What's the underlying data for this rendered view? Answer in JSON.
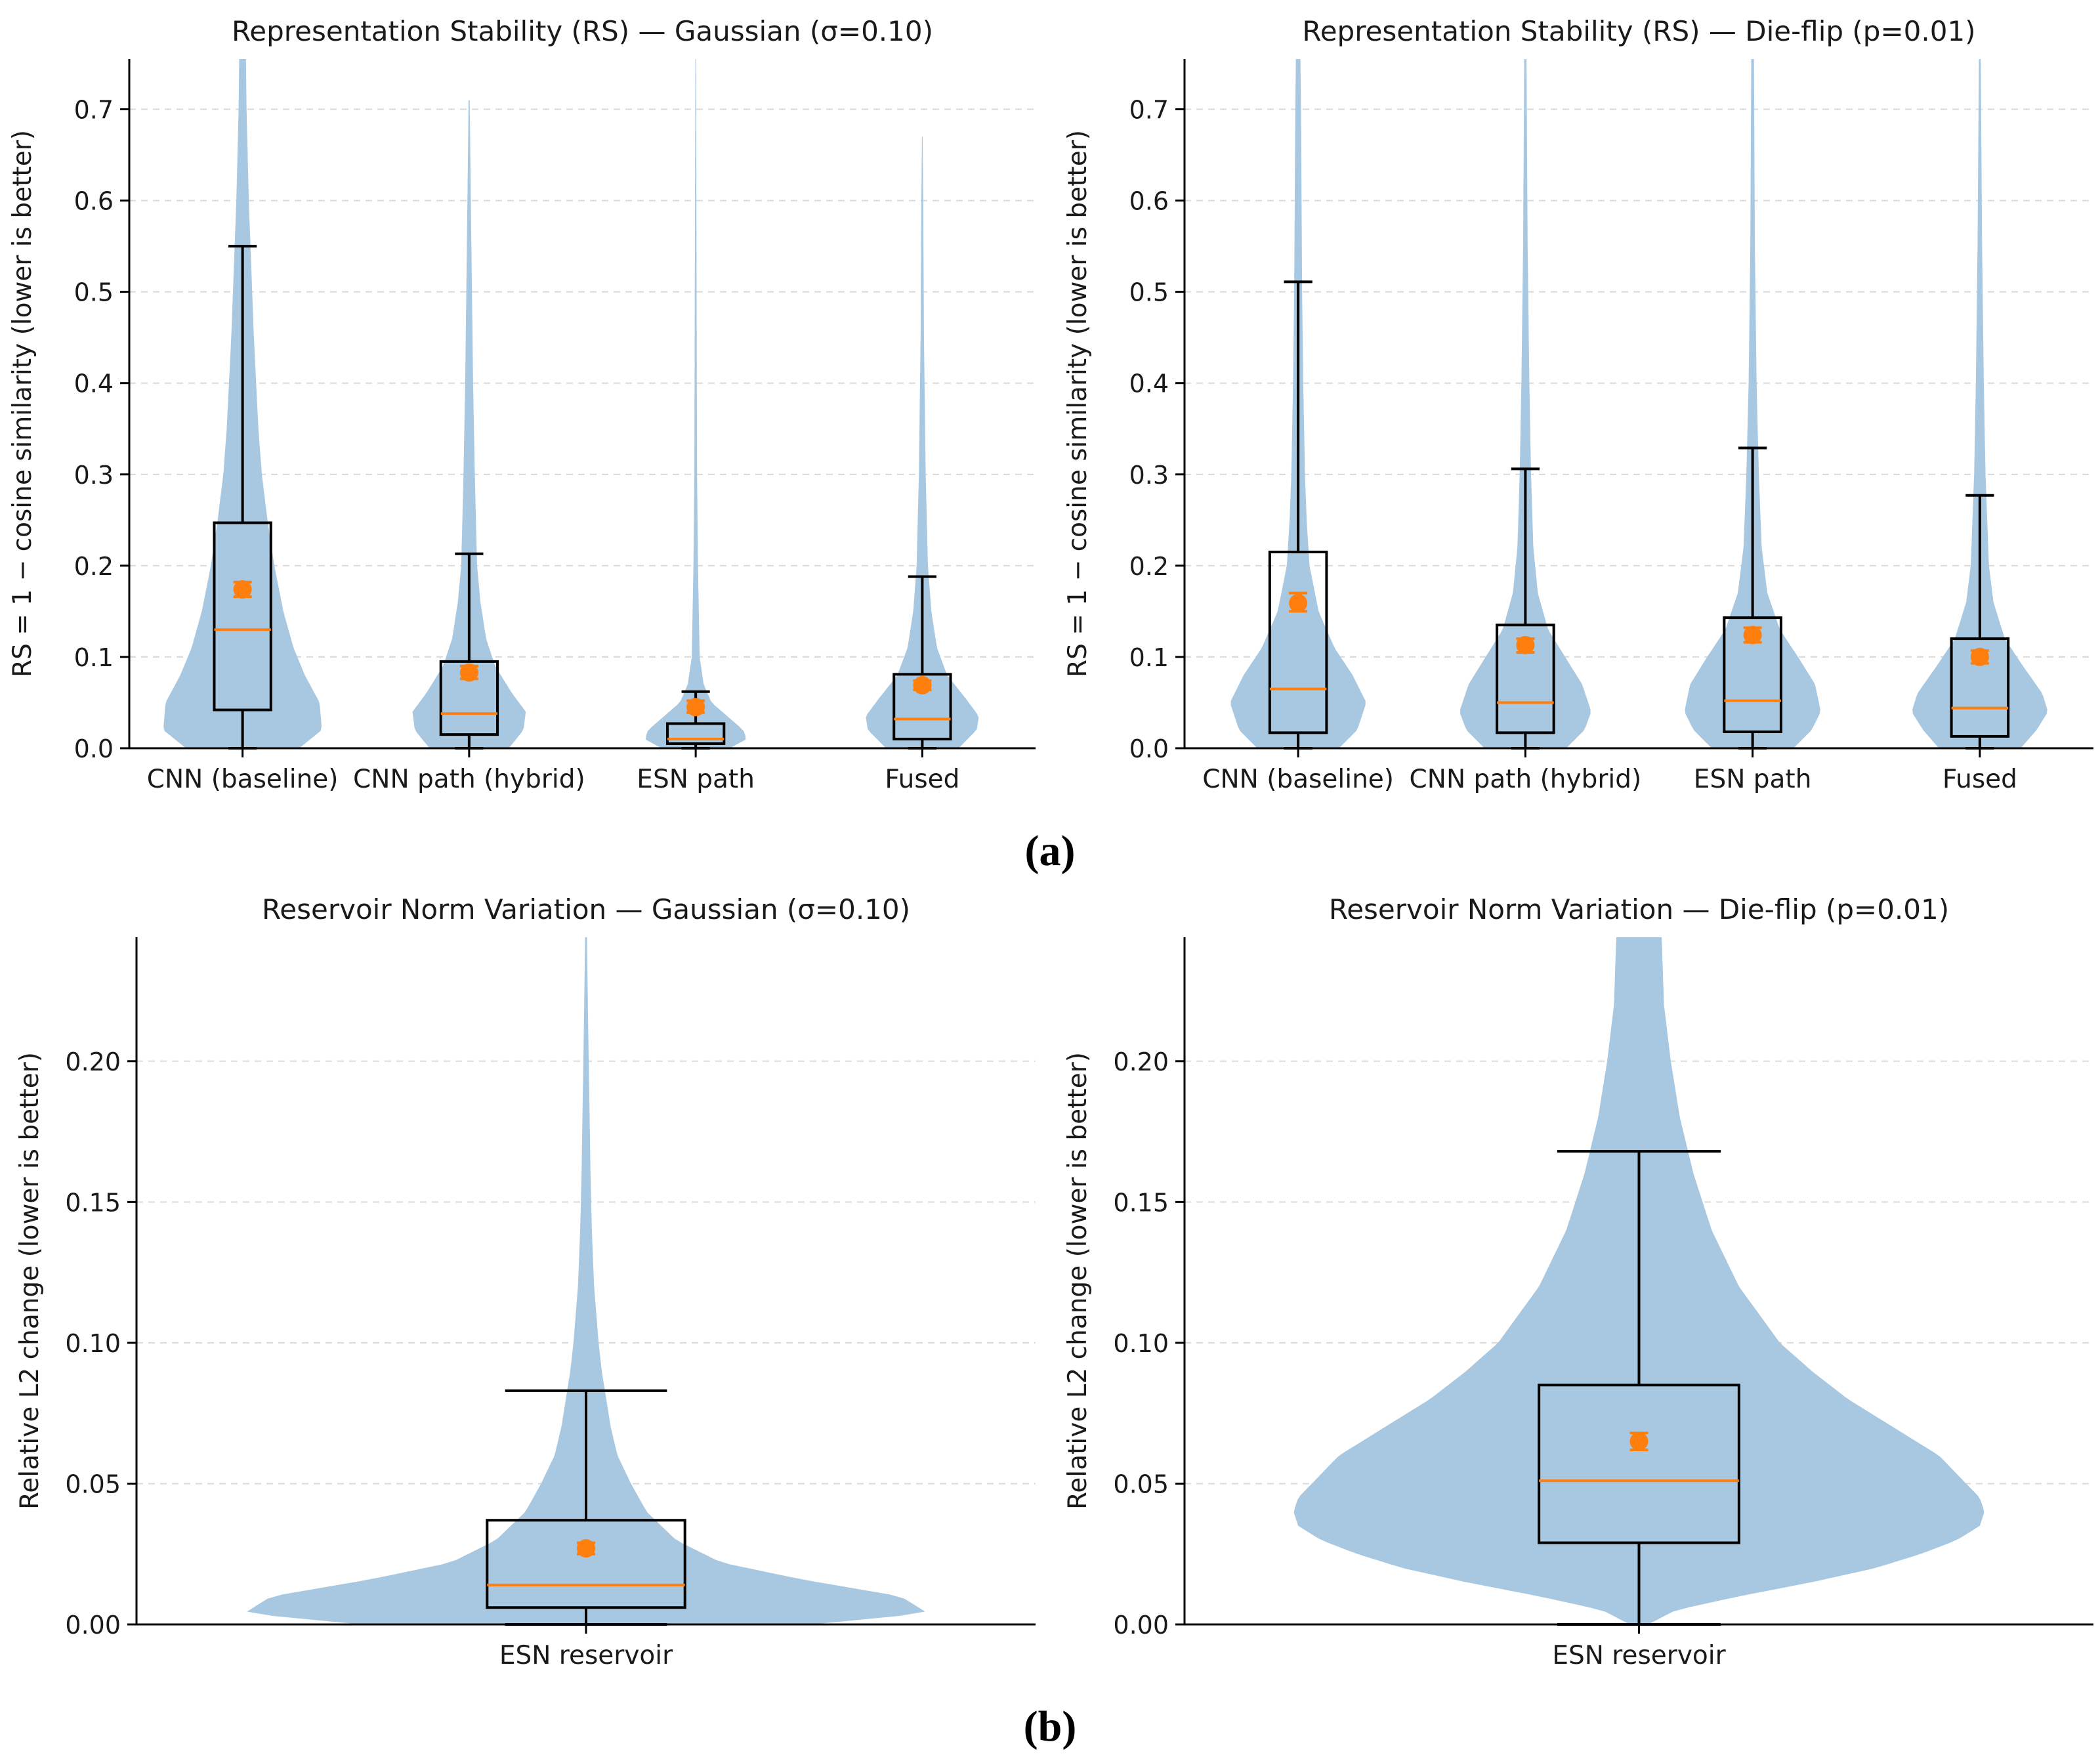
{
  "panel_labels": [
    "(a)",
    "(b)"
  ],
  "colors": {
    "violin": "#a8c8e1",
    "median": "#ff7f0e",
    "mean": "#ff7f0e",
    "box": "#000000",
    "grid": "#d9d9d9"
  },
  "chart_data": [
    {
      "type": "violin-box",
      "title": "Representation Stability (RS) — Gaussian (σ=0.10)",
      "ylabel": "RS = 1 − cosine similarity (lower is better)",
      "xlabel": "",
      "ylim": [
        0,
        0.755
      ],
      "yticks": [
        0.0,
        0.1,
        0.2,
        0.3,
        0.4,
        0.5,
        0.6,
        0.7
      ],
      "ytick_labels": [
        "0.0",
        "0.1",
        "0.2",
        "0.3",
        "0.4",
        "0.5",
        "0.6",
        "0.7"
      ],
      "grid": "y-dashed",
      "categories": [
        "CNN (baseline)",
        "CNN path (hybrid)",
        "ESN path",
        "Fused"
      ],
      "series": [
        {
          "name": "CNN (baseline)",
          "whisker_low": 0.0,
          "q1": 0.042,
          "median": 0.13,
          "q3": 0.247,
          "whisker_high": 0.55,
          "mean": 0.174,
          "mean_ci": [
            0.166,
            0.182
          ],
          "violin_max": 0.755,
          "violin_profile": [
            [
              0.0,
              0.5
            ],
            [
              0.02,
              0.7
            ],
            [
              0.05,
              0.68
            ],
            [
              0.08,
              0.55
            ],
            [
              0.11,
              0.45
            ],
            [
              0.15,
              0.36
            ],
            [
              0.2,
              0.28
            ],
            [
              0.25,
              0.22
            ],
            [
              0.3,
              0.17
            ],
            [
              0.35,
              0.14
            ],
            [
              0.4,
              0.12
            ],
            [
              0.45,
              0.1
            ],
            [
              0.5,
              0.085
            ],
            [
              0.55,
              0.07
            ],
            [
              0.6,
              0.055
            ],
            [
              0.65,
              0.045
            ],
            [
              0.7,
              0.035
            ],
            [
              0.755,
              0.03
            ]
          ]
        },
        {
          "name": "CNN path (hybrid)",
          "whisker_low": 0.0,
          "q1": 0.015,
          "median": 0.038,
          "q3": 0.095,
          "whisker_high": 0.213,
          "mean": 0.083,
          "mean_ci": [
            0.076,
            0.09
          ],
          "violin_max": 0.71,
          "violin_profile": [
            [
              0.0,
              0.35
            ],
            [
              0.02,
              0.48
            ],
            [
              0.04,
              0.5
            ],
            [
              0.06,
              0.38
            ],
            [
              0.09,
              0.23
            ],
            [
              0.12,
              0.15
            ],
            [
              0.16,
              0.1
            ],
            [
              0.2,
              0.07
            ],
            [
              0.3,
              0.05
            ],
            [
              0.4,
              0.035
            ],
            [
              0.5,
              0.025
            ],
            [
              0.6,
              0.015
            ],
            [
              0.71,
              0.005
            ]
          ]
        },
        {
          "name": "ESN path",
          "whisker_low": 0.0,
          "q1": 0.005,
          "median": 0.01,
          "q3": 0.027,
          "whisker_high": 0.062,
          "mean": 0.045,
          "mean_ci": [
            0.039,
            0.052
          ],
          "violin_max": 0.755,
          "violin_profile": [
            [
              0.0,
              0.3
            ],
            [
              0.01,
              0.45
            ],
            [
              0.02,
              0.42
            ],
            [
              0.035,
              0.28
            ],
            [
              0.05,
              0.14
            ],
            [
              0.07,
              0.07
            ],
            [
              0.1,
              0.035
            ],
            [
              0.2,
              0.02
            ],
            [
              0.3,
              0.012
            ],
            [
              0.5,
              0.008
            ],
            [
              0.755,
              0.003
            ]
          ]
        },
        {
          "name": "Fused",
          "whisker_low": 0.0,
          "q1": 0.01,
          "median": 0.032,
          "q3": 0.081,
          "whisker_high": 0.188,
          "mean": 0.069,
          "mean_ci": [
            0.064,
            0.074
          ],
          "violin_max": 0.67,
          "violin_profile": [
            [
              0.0,
              0.32
            ],
            [
              0.02,
              0.48
            ],
            [
              0.035,
              0.5
            ],
            [
              0.055,
              0.38
            ],
            [
              0.08,
              0.22
            ],
            [
              0.11,
              0.13
            ],
            [
              0.15,
              0.08
            ],
            [
              0.2,
              0.05
            ],
            [
              0.3,
              0.03
            ],
            [
              0.45,
              0.015
            ],
            [
              0.6,
              0.008
            ],
            [
              0.67,
              0.003
            ]
          ]
        }
      ]
    },
    {
      "type": "violin-box",
      "title": "Representation Stability (RS) — Die-flip (p=0.01)",
      "ylabel": "RS = 1 − cosine similarity (lower is better)",
      "xlabel": "",
      "ylim": [
        0,
        0.755
      ],
      "yticks": [
        0.0,
        0.1,
        0.2,
        0.3,
        0.4,
        0.5,
        0.6,
        0.7
      ],
      "ytick_labels": [
        "0.0",
        "0.1",
        "0.2",
        "0.3",
        "0.4",
        "0.5",
        "0.6",
        "0.7"
      ],
      "grid": "y-dashed",
      "categories": [
        "CNN (baseline)",
        "CNN path (hybrid)",
        "ESN path",
        "Fused"
      ],
      "series": [
        {
          "name": "CNN (baseline)",
          "whisker_low": 0.0,
          "q1": 0.017,
          "median": 0.065,
          "q3": 0.215,
          "whisker_high": 0.511,
          "mean": 0.159,
          "mean_ci": [
            0.15,
            0.17
          ],
          "violin_max": 0.755,
          "violin_profile": [
            [
              0.0,
              0.36
            ],
            [
              0.02,
              0.52
            ],
            [
              0.05,
              0.6
            ],
            [
              0.08,
              0.48
            ],
            [
              0.11,
              0.32
            ],
            [
              0.15,
              0.18
            ],
            [
              0.2,
              0.1
            ],
            [
              0.25,
              0.075
            ],
            [
              0.3,
              0.06
            ],
            [
              0.4,
              0.045
            ],
            [
              0.5,
              0.035
            ],
            [
              0.6,
              0.03
            ],
            [
              0.7,
              0.025
            ],
            [
              0.755,
              0.02
            ]
          ]
        },
        {
          "name": "CNN path (hybrid)",
          "whisker_low": 0.0,
          "q1": 0.017,
          "median": 0.05,
          "q3": 0.135,
          "whisker_high": 0.306,
          "mean": 0.113,
          "mean_ci": [
            0.105,
            0.12
          ],
          "violin_max": 0.755,
          "violin_profile": [
            [
              0.0,
              0.36
            ],
            [
              0.02,
              0.52
            ],
            [
              0.04,
              0.58
            ],
            [
              0.07,
              0.5
            ],
            [
              0.1,
              0.35
            ],
            [
              0.13,
              0.2
            ],
            [
              0.17,
              0.11
            ],
            [
              0.22,
              0.07
            ],
            [
              0.3,
              0.05
            ],
            [
              0.4,
              0.035
            ],
            [
              0.55,
              0.02
            ],
            [
              0.755,
              0.01
            ]
          ]
        },
        {
          "name": "ESN path",
          "whisker_low": 0.0,
          "q1": 0.018,
          "median": 0.052,
          "q3": 0.143,
          "whisker_high": 0.329,
          "mean": 0.124,
          "mean_ci": [
            0.116,
            0.132
          ],
          "violin_max": 0.755,
          "violin_profile": [
            [
              0.0,
              0.36
            ],
            [
              0.02,
              0.52
            ],
            [
              0.04,
              0.6
            ],
            [
              0.07,
              0.55
            ],
            [
              0.1,
              0.4
            ],
            [
              0.13,
              0.24
            ],
            [
              0.17,
              0.13
            ],
            [
              0.22,
              0.08
            ],
            [
              0.3,
              0.055
            ],
            [
              0.4,
              0.035
            ],
            [
              0.55,
              0.02
            ],
            [
              0.755,
              0.012
            ]
          ]
        },
        {
          "name": "Fused",
          "whisker_low": 0.0,
          "q1": 0.013,
          "median": 0.044,
          "q3": 0.12,
          "whisker_high": 0.277,
          "mean": 0.1,
          "mean_ci": [
            0.093,
            0.107
          ],
          "violin_max": 0.755,
          "violin_profile": [
            [
              0.0,
              0.36
            ],
            [
              0.02,
              0.5
            ],
            [
              0.04,
              0.6
            ],
            [
              0.06,
              0.55
            ],
            [
              0.09,
              0.38
            ],
            [
              0.12,
              0.22
            ],
            [
              0.16,
              0.12
            ],
            [
              0.2,
              0.08
            ],
            [
              0.3,
              0.05
            ],
            [
              0.4,
              0.035
            ],
            [
              0.55,
              0.02
            ],
            [
              0.755,
              0.008
            ]
          ]
        }
      ]
    },
    {
      "type": "violin-box",
      "title": "Reservoir Norm Variation — Gaussian (σ=0.10)",
      "ylabel": "Relative L2 change (lower is better)",
      "xlabel": "",
      "ylim": [
        0,
        0.244
      ],
      "yticks": [
        0.0,
        0.05,
        0.1,
        0.15,
        0.2
      ],
      "ytick_labels": [
        "0.00",
        "0.05",
        "0.10",
        "0.15",
        "0.20"
      ],
      "grid": "y-dashed",
      "categories": [
        "ESN reservoir"
      ],
      "series": [
        {
          "name": "ESN reservoir",
          "whisker_low": 0.0,
          "q1": 0.006,
          "median": 0.014,
          "q3": 0.037,
          "whisker_high": 0.083,
          "mean": 0.027,
          "mean_ci": [
            0.025,
            0.029
          ],
          "violin_max": 0.244,
          "violin_profile": [
            [
              0.0,
              0.5
            ],
            [
              0.004,
              0.76
            ],
            [
              0.01,
              0.7
            ],
            [
              0.016,
              0.48
            ],
            [
              0.022,
              0.3
            ],
            [
              0.03,
              0.2
            ],
            [
              0.04,
              0.135
            ],
            [
              0.05,
              0.1
            ],
            [
              0.06,
              0.07
            ],
            [
              0.07,
              0.055
            ],
            [
              0.08,
              0.045
            ],
            [
              0.09,
              0.035
            ],
            [
              0.1,
              0.028
            ],
            [
              0.12,
              0.018
            ],
            [
              0.14,
              0.013
            ],
            [
              0.16,
              0.01
            ],
            [
              0.18,
              0.008
            ],
            [
              0.21,
              0.005
            ],
            [
              0.244,
              0.002
            ]
          ]
        }
      ]
    },
    {
      "type": "violin-box",
      "title": "Reservoir Norm Variation — Die-flip (p=0.01)",
      "ylabel": "Relative L2 change (lower is better)",
      "xlabel": "",
      "ylim": [
        0,
        0.244
      ],
      "yticks": [
        0.0,
        0.05,
        0.1,
        0.15,
        0.2
      ],
      "ytick_labels": [
        "0.00",
        "0.05",
        "0.10",
        "0.15",
        "0.20"
      ],
      "grid": "y-dashed",
      "categories": [
        "ESN reservoir"
      ],
      "series": [
        {
          "name": "ESN reservoir",
          "whisker_low": 0.0,
          "q1": 0.029,
          "median": 0.051,
          "q3": 0.085,
          "whisker_high": 0.168,
          "mean": 0.065,
          "mean_ci": [
            0.062,
            0.068
          ],
          "violin_max": 0.244,
          "violin_profile": [
            [
              0.0,
              0.02
            ],
            [
              0.005,
              0.08
            ],
            [
              0.01,
              0.22
            ],
            [
              0.015,
              0.38
            ],
            [
              0.02,
              0.52
            ],
            [
              0.025,
              0.62
            ],
            [
              0.03,
              0.7
            ],
            [
              0.035,
              0.75
            ],
            [
              0.04,
              0.76
            ],
            [
              0.045,
              0.75
            ],
            [
              0.05,
              0.72
            ],
            [
              0.06,
              0.66
            ],
            [
              0.07,
              0.56
            ],
            [
              0.08,
              0.46
            ],
            [
              0.09,
              0.38
            ],
            [
              0.1,
              0.31
            ],
            [
              0.12,
              0.22
            ],
            [
              0.14,
              0.16
            ],
            [
              0.16,
              0.12
            ],
            [
              0.18,
              0.09
            ],
            [
              0.2,
              0.07
            ],
            [
              0.22,
              0.055
            ],
            [
              0.244,
              0.05
            ]
          ]
        }
      ]
    }
  ]
}
